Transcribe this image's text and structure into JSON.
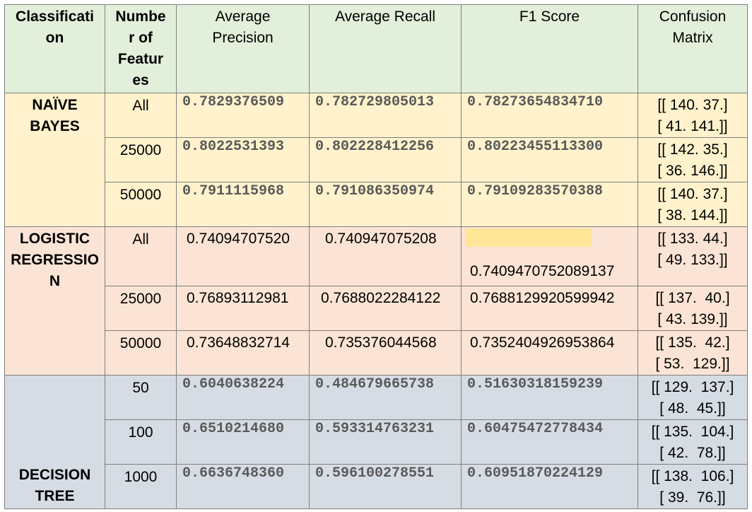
{
  "headers": {
    "classification": "Classificati\non",
    "features": "Numbe\nr of\nFeatur\nes",
    "precision": "Average\nPrecision",
    "recall": "Average Recall",
    "f1": "F1 Score",
    "confusion": "Confusion\nMatrix"
  },
  "groups": {
    "naive_bayes": {
      "label": "NAÏVE\nBAYES",
      "rows": [
        {
          "features": "All",
          "precision": "0.7829376509",
          "recall": "0.782729805013",
          "f1": "0.78273654834710",
          "cm1": "[[ 140. 37.]",
          "cm2": "[ 41. 141.]]"
        },
        {
          "features": "25000",
          "precision": "0.8022531393",
          "recall": "0.802228412256",
          "f1": "0.80223455113300",
          "cm1": "[[ 142. 35.]",
          "cm2": "[ 36. 146.]]"
        },
        {
          "features": "50000",
          "precision": "0.7911115968",
          "recall": "0.791086350974",
          "f1": "0.79109283570388",
          "cm1": "[[ 140. 37.]",
          "cm2": "[ 38. 144.]]"
        }
      ]
    },
    "logistic_regression": {
      "label": "LOGISTIC\nREGRESSIO\nN",
      "rows": [
        {
          "features": "All",
          "precision": "0.74094707520",
          "recall": "0.740947075208",
          "f1": "0.7409470752089137",
          "cm1": "[[ 133. 44.]",
          "cm2": "[ 49. 133.]]"
        },
        {
          "features": "25000",
          "precision": "0.76893112981",
          "recall": "0.7688022284122",
          "f1": "0.7688129920599942",
          "cm1": "[[ 137.  40.]",
          "cm2": "[ 43. 139.]]"
        },
        {
          "features": "50000",
          "precision": "0.73648832714",
          "recall": "0.735376044568",
          "f1": "0.7352404926953864",
          "cm1": "[[ 135.  42.]",
          "cm2": "[ 53.  129.]]"
        }
      ]
    },
    "decision_tree": {
      "label": "DECISION\nTREE",
      "rows": [
        {
          "features": "50",
          "precision": "0.6040638224",
          "recall": "0.484679665738",
          "f1": "0.51630318159239",
          "cm1": "[[ 129.  137.]",
          "cm2": "[ 48.  45.]]"
        },
        {
          "features": "100",
          "precision": "0.6510214680",
          "recall": "0.593314763231",
          "f1": "0.60475472778434",
          "cm1": "[[ 135.  104.]",
          "cm2": "[ 42.  78.]]"
        },
        {
          "features": "1000",
          "precision": "0.6636748360",
          "recall": "0.596100278551",
          "f1": "0.60951870224129",
          "cm1": "[[ 138.  106.]",
          "cm2": "[ 39.  76.]]"
        }
      ]
    }
  }
}
